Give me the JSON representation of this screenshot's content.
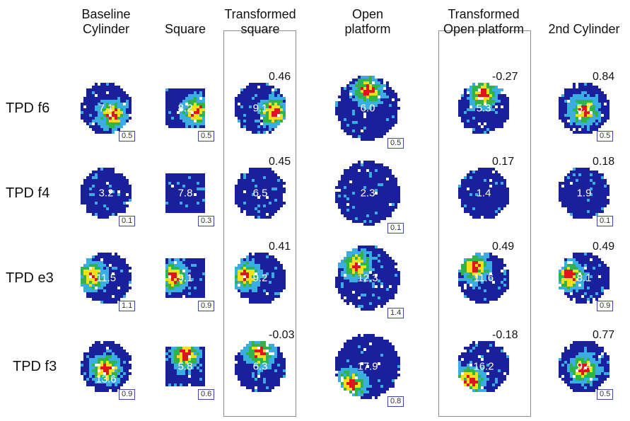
{
  "columns": [
    {
      "key": "baseline",
      "label": "Baseline\nCylinder",
      "shape": "circle",
      "boxed": false
    },
    {
      "key": "square",
      "label": "Square",
      "shape": "square",
      "boxed": false
    },
    {
      "key": "tsquare",
      "label": "Transformed\nsquare",
      "shape": "circle",
      "boxed": true
    },
    {
      "key": "open",
      "label": "Open\nplatform",
      "shape": "bigcircle",
      "boxed": false
    },
    {
      "key": "topen",
      "label": "Transformed\nOpen platform",
      "shape": "circle",
      "boxed": true
    },
    {
      "key": "cyl2",
      "label": "2nd Cylinder",
      "shape": "circle",
      "boxed": false
    }
  ],
  "rows": [
    {
      "label": "TPD f6",
      "cells": [
        {
          "rate": "7.1",
          "peak": "0.5",
          "corr": "",
          "hot": "center-right"
        },
        {
          "rate": "8.2",
          "peak": "0.5",
          "corr": "",
          "hot": "right"
        },
        {
          "rate": "9.1",
          "peak": "",
          "corr": "0.46",
          "hot": "right"
        },
        {
          "rate": "6.0",
          "peak": "0.5",
          "corr": "",
          "hot": "top"
        },
        {
          "rate": "5.3",
          "peak": "",
          "corr": "-0.27",
          "hot": "top"
        },
        {
          "rate": "5.7",
          "peak": "0.5",
          "corr": "0.84",
          "hot": "center"
        }
      ]
    },
    {
      "label": "TPD f4",
      "cells": [
        {
          "rate": "3.2",
          "peak": "0.1",
          "corr": "",
          "hot": "none"
        },
        {
          "rate": "7.8",
          "peak": "0.3",
          "corr": "",
          "hot": "none"
        },
        {
          "rate": "6.5",
          "peak": "",
          "corr": "0.45",
          "hot": "none"
        },
        {
          "rate": "2.3",
          "peak": "0.1",
          "corr": "",
          "hot": "none"
        },
        {
          "rate": "1.4",
          "peak": "",
          "corr": "0.17",
          "hot": "none"
        },
        {
          "rate": "1.9",
          "peak": "0.1",
          "corr": "0.18",
          "hot": "none"
        }
      ]
    },
    {
      "label": "TPD e3",
      "cells": [
        {
          "rate": "11.5",
          "peak": "1.1",
          "corr": "",
          "hot": "left"
        },
        {
          "rate": "9.1",
          "peak": "0.9",
          "corr": "",
          "hot": "left"
        },
        {
          "rate": "9.2",
          "peak": "",
          "corr": "0.41",
          "hot": "left"
        },
        {
          "rate": "12.3",
          "peak": "1.4",
          "corr": "",
          "hot": "top-left"
        },
        {
          "rate": "11.6",
          "peak": "",
          "corr": "0.49",
          "hot": "top-left"
        },
        {
          "rate": "8.1",
          "peak": "0.9",
          "corr": "0.49",
          "hot": "left"
        }
      ]
    },
    {
      "label": "TPD f3",
      "cells": [
        {
          "rate": "13.6",
          "peak": "0.9",
          "corr": "",
          "hot": "center"
        },
        {
          "rate": "5.8",
          "peak": "0.6",
          "corr": "",
          "hot": "top"
        },
        {
          "rate": "6.3",
          "peak": "",
          "corr": "-0.03",
          "hot": "top"
        },
        {
          "rate": "17.9",
          "peak": "0.8",
          "corr": "",
          "hot": "bottom-left"
        },
        {
          "rate": "16.2",
          "peak": "",
          "corr": "-0.18",
          "hot": "bottom-left"
        },
        {
          "rate": "9.4",
          "peak": "0.5",
          "corr": "0.77",
          "hot": "center"
        }
      ]
    }
  ],
  "palette": {
    "background": "#1a1f9c",
    "low": "#3aaee0",
    "mid": "#2fb34a",
    "high": "#f2e01e",
    "peak": "#e0141e",
    "frame": "#8a8a8a"
  }
}
